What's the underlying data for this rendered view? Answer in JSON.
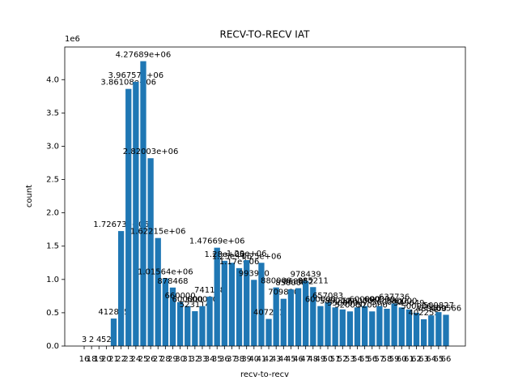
{
  "chart_data": {
    "type": "bar",
    "title": "RECV-TO-RECV IAT",
    "x_label": "recv-to-recv",
    "y_label": "count",
    "y_offset_label": "1e6",
    "color": "#1f77b4",
    "categories": [
      "16",
      "18",
      "19",
      "20",
      "21",
      "22",
      "23",
      "24",
      "25",
      "26",
      "27",
      "28",
      "29",
      "30",
      "31",
      "32",
      "33",
      "34",
      "35",
      "36",
      "37",
      "38",
      "39",
      "40",
      "41",
      "42",
      "43",
      "44",
      "45",
      "46",
      "47",
      "48",
      "49",
      "50",
      "51",
      "52",
      "53",
      "54",
      "55",
      "56",
      "57",
      "58",
      "59",
      "60",
      "61",
      "62",
      "63",
      "64",
      "65",
      "66"
    ],
    "values": [
      3,
      2,
      4,
      52,
      412865,
      1726730,
      3861080,
      3967570,
      4276890,
      2820030,
      1622150,
      1015640,
      878468,
      660000,
      600000,
      523114,
      600000,
      741138,
      1476690,
      1280000,
      1250000,
      1170000,
      1290000,
      993920,
      1250000,
      407221,
      880000,
      709820,
      850000,
      868852,
      978439,
      885211,
      600000,
      657083,
      580000,
      550000,
      520000,
      580000,
      600000,
      520000,
      600000,
      560000,
      637736,
      580000,
      549649,
      500000,
      402255,
      460000,
      509827,
      469566
    ],
    "value_labels": [
      "3",
      "2",
      "4",
      "52",
      "412865",
      "1.72673e+06",
      "3.86108e+06",
      "3.96757e+06",
      "4.27689e+06",
      "2.82003e+06",
      "1.62215e+06",
      "1.01564e+06",
      "878468",
      "660000",
      "600000",
      "523114",
      "600000",
      "741138",
      "1.47669e+06",
      "1.28e+06",
      "1.25e+06",
      "1.17e+06",
      "1.29e+06",
      "993920",
      "1.25e+06",
      "407221",
      "880000",
      "709820",
      "850000",
      "868852",
      "978439",
      "885211",
      "600000",
      "657083",
      "580000",
      "550000",
      "520000",
      "580000",
      "600000",
      "520000",
      "600000",
      "560000",
      "637736",
      "580000",
      "549649",
      "500000",
      "402255",
      "460000",
      "509827",
      "469566"
    ],
    "ylim": [
      0,
      4490000
    ],
    "yticks": [
      {
        "value": 0,
        "label": "0.0"
      },
      {
        "value": 500000,
        "label": "0.5"
      },
      {
        "value": 1000000,
        "label": "1.0"
      },
      {
        "value": 1500000,
        "label": "1.5"
      },
      {
        "value": 2000000,
        "label": "2.0"
      },
      {
        "value": 2500000,
        "label": "2.5"
      },
      {
        "value": 3000000,
        "label": "3.0"
      },
      {
        "value": 3500000,
        "label": "3.5"
      },
      {
        "value": 4000000,
        "label": "4.0"
      }
    ],
    "grid": false
  }
}
